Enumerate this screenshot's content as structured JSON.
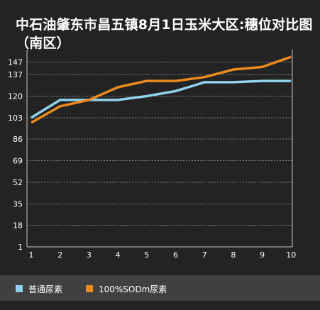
{
  "chart_data": {
    "type": "line",
    "title": "中石油肇东市昌五镇8月1日玉米大区:穗位对比图（南区）",
    "xlabel": "",
    "ylabel": "",
    "x": [
      1,
      2,
      3,
      4,
      5,
      6,
      7,
      8,
      9,
      10
    ],
    "x_ticks": [
      "1",
      "2",
      "3",
      "4",
      "5",
      "6",
      "7",
      "8",
      "9",
      "10"
    ],
    "y_ticks": [
      1,
      18,
      35,
      52,
      69,
      86,
      103,
      120,
      137,
      147
    ],
    "ylim": [
      1,
      155
    ],
    "grid": "horizontal dashed",
    "legend_position": "bottom",
    "series": [
      {
        "name": "普通尿素",
        "color": "#8fd3ec",
        "values": [
          103,
          117,
          117,
          117,
          120,
          124,
          131,
          131,
          132,
          132
        ]
      },
      {
        "name": "100%SODm尿素",
        "color": "#ea8a1f",
        "values": [
          99,
          112,
          117,
          127,
          132,
          132,
          135,
          141,
          143,
          151
        ]
      }
    ]
  },
  "colors": {
    "background": "#232323",
    "legend_background": "#404040",
    "text": "#ffffff",
    "axis": "#c8c8c8",
    "grid": "#888888"
  }
}
